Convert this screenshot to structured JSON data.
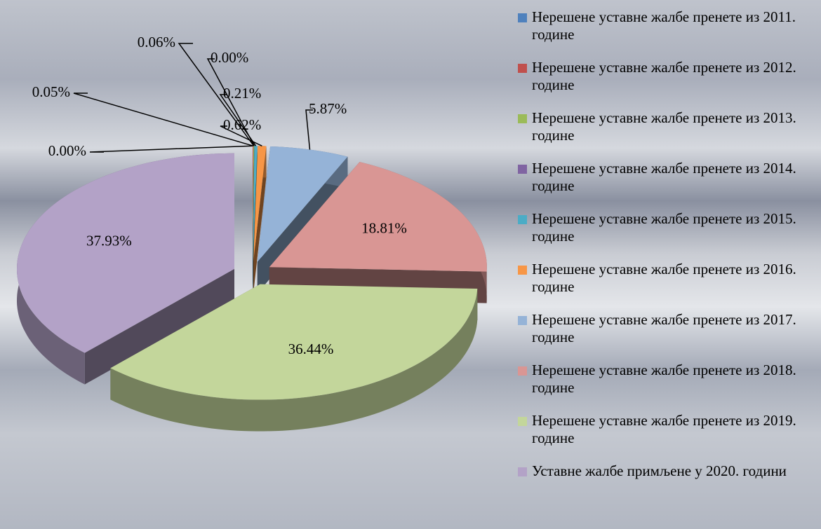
{
  "chart_data": {
    "type": "pie3d",
    "categories": [
      "Нерешене уставне жалбе пренете из 2011. године",
      "Нерешене уставне жалбе пренете из 2012. године",
      "Нерешене уставне жалбе пренете из 2013. године",
      "Нерешене уставне жалбе пренете из 2014. године",
      "Нерешене уставне жалбе пренете из 2015. године",
      "Нерешене уставне жалбе пренете из 2016. године",
      "Нерешене уставне жалбе пренете из 2017. године",
      "Нерешене уставне жалбе пренете из 2018. године",
      "Нерешене уставне жалбе пренете из 2019. године",
      "Уставне жалбе примљене у 2020. години"
    ],
    "values": [
      0,
      0.05,
      0.06,
      0,
      0.21,
      0.62,
      5.87,
      18.81,
      36.44,
      37.93
    ],
    "value_labels": [
      "0.00%",
      "0.05%",
      "0.06%",
      "0.00%",
      "0.21%",
      "0.62%",
      "5.87%",
      "18.81%",
      "36.44%",
      "37.93%"
    ],
    "colors": [
      "#4f81bd",
      "#c0504d",
      "#9bbb59",
      "#8064a2",
      "#4bacc6",
      "#f79646",
      "#95b3d7",
      "#d99694",
      "#c3d69b",
      "#b3a2c7"
    ],
    "legend": "right"
  }
}
